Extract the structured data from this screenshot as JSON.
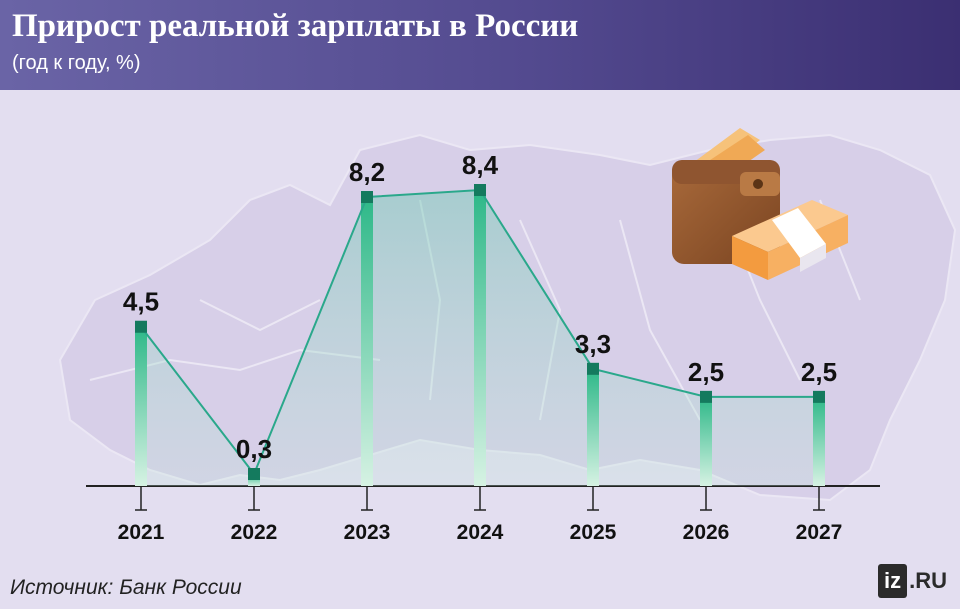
{
  "header": {
    "title": "Прирост реальной зарплаты в России",
    "subtitle": "(год к году, %)"
  },
  "source": "Источник: Банк России",
  "logo": {
    "iz": "iz",
    "ru": ".RU"
  },
  "colors": {
    "header_bg": "#534a8f",
    "line": "#2aa88b",
    "marker": "#147a5e",
    "bar_top": "#2db888",
    "bar_bottom": "#d6f2e3",
    "background": "#e3def0",
    "map": "#d6cee8"
  },
  "icons": [
    "wallet-icon",
    "money-stack-icon",
    "russia-map-background"
  ],
  "chart_data": {
    "type": "line",
    "categories": [
      "2021",
      "2022",
      "2023",
      "2024",
      "2025",
      "2026",
      "2027"
    ],
    "values": [
      4.5,
      0.3,
      8.2,
      8.4,
      3.3,
      2.5,
      2.5
    ],
    "value_labels": [
      "4,5",
      "0,3",
      "8,2",
      "8,4",
      "3,3",
      "2,5",
      "2,5"
    ],
    "title": "Прирост реальной зарплаты в России",
    "subtitle": "(год к году, %)",
    "xlabel": "",
    "ylabel": "",
    "ylim": [
      0,
      8.4
    ],
    "grid": false,
    "legend": "none"
  }
}
